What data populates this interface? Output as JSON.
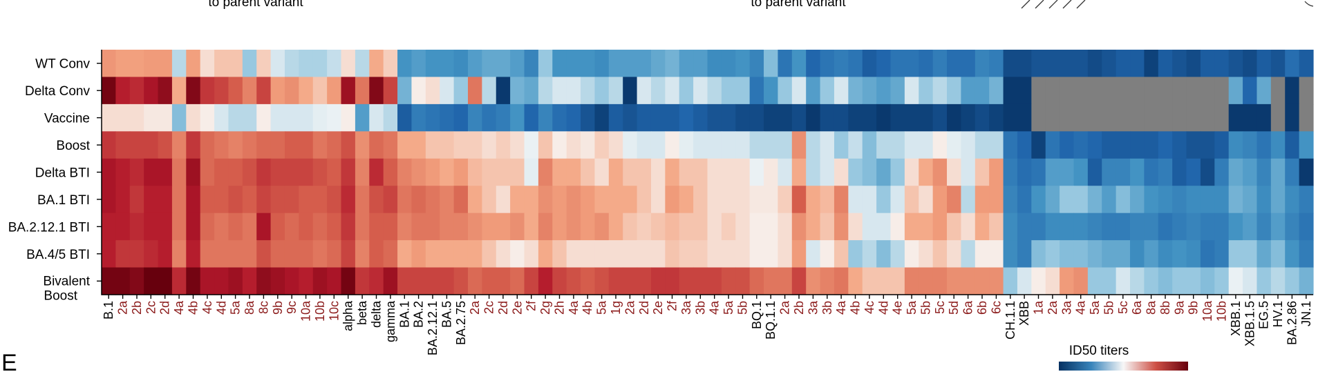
{
  "header": {
    "left_note": "to parent variant",
    "right_note": "to parent variant",
    "panel_letter": "E"
  },
  "colors": {
    "low": "#08306b",
    "mid": "#f7f7f7",
    "high": "#67000d",
    "missing": "#7f7f7f",
    "parent_label": "#8b1a1a",
    "axis": "#000000"
  },
  "legend": {
    "title": "ID50 titers",
    "colormap": "RdBu_r"
  },
  "chart_data": {
    "type": "heatmap",
    "title": "",
    "rows": [
      "WT Conv",
      "Delta Conv",
      "Vaccine",
      "Boost",
      "Delta BTI",
      "BA.1 BTI",
      "BA.2.12.1 BTI",
      "BA.4/5 BTI",
      "Bivalent Boost"
    ],
    "columns": [
      {
        "label": "B.1",
        "type": "parent"
      },
      {
        "label": "2a",
        "type": "sub"
      },
      {
        "label": "2b",
        "type": "sub"
      },
      {
        "label": "2c",
        "type": "sub"
      },
      {
        "label": "2d",
        "type": "sub"
      },
      {
        "label": "4a",
        "type": "sub"
      },
      {
        "label": "4b",
        "type": "sub"
      },
      {
        "label": "4c",
        "type": "sub"
      },
      {
        "label": "4d",
        "type": "sub"
      },
      {
        "label": "5a",
        "type": "sub"
      },
      {
        "label": "8a",
        "type": "sub"
      },
      {
        "label": "8c",
        "type": "sub"
      },
      {
        "label": "9b",
        "type": "sub"
      },
      {
        "label": "9c",
        "type": "sub"
      },
      {
        "label": "10a",
        "type": "sub"
      },
      {
        "label": "10b",
        "type": "sub"
      },
      {
        "label": "10c",
        "type": "sub"
      },
      {
        "label": "alpha",
        "type": "parent"
      },
      {
        "label": "beta",
        "type": "parent"
      },
      {
        "label": "delta",
        "type": "parent"
      },
      {
        "label": "gamma",
        "type": "parent"
      },
      {
        "label": "BA.1",
        "type": "parent"
      },
      {
        "label": "BA.2",
        "type": "parent"
      },
      {
        "label": "BA.2.12.1",
        "type": "parent"
      },
      {
        "label": "BA.5",
        "type": "parent"
      },
      {
        "label": "BA.2.75",
        "type": "parent"
      },
      {
        "label": "2a",
        "type": "sub"
      },
      {
        "label": "2c",
        "type": "sub"
      },
      {
        "label": "2d",
        "type": "sub"
      },
      {
        "label": "2e",
        "type": "sub"
      },
      {
        "label": "2f",
        "type": "sub"
      },
      {
        "label": "2g",
        "type": "sub"
      },
      {
        "label": "2h",
        "type": "sub"
      },
      {
        "label": "4a",
        "type": "sub"
      },
      {
        "label": "4b",
        "type": "sub"
      },
      {
        "label": "5a",
        "type": "sub"
      },
      {
        "label": "1g",
        "type": "sub"
      },
      {
        "label": "2a",
        "type": "sub"
      },
      {
        "label": "2d",
        "type": "sub"
      },
      {
        "label": "2e",
        "type": "sub"
      },
      {
        "label": "2f",
        "type": "sub"
      },
      {
        "label": "3a",
        "type": "sub"
      },
      {
        "label": "3b",
        "type": "sub"
      },
      {
        "label": "4a",
        "type": "sub"
      },
      {
        "label": "5a",
        "type": "sub"
      },
      {
        "label": "5b",
        "type": "sub"
      },
      {
        "label": "BQ.1",
        "type": "parent"
      },
      {
        "label": "BQ.1.1",
        "type": "parent"
      },
      {
        "label": "2a",
        "type": "sub"
      },
      {
        "label": "2b",
        "type": "sub"
      },
      {
        "label": "3a",
        "type": "sub"
      },
      {
        "label": "3b",
        "type": "sub"
      },
      {
        "label": "4a",
        "type": "sub"
      },
      {
        "label": "4b",
        "type": "sub"
      },
      {
        "label": "4c",
        "type": "sub"
      },
      {
        "label": "4d",
        "type": "sub"
      },
      {
        "label": "4e",
        "type": "sub"
      },
      {
        "label": "5a",
        "type": "sub"
      },
      {
        "label": "5b",
        "type": "sub"
      },
      {
        "label": "5c",
        "type": "sub"
      },
      {
        "label": "5d",
        "type": "sub"
      },
      {
        "label": "6a",
        "type": "sub"
      },
      {
        "label": "6b",
        "type": "sub"
      },
      {
        "label": "6c",
        "type": "sub"
      },
      {
        "label": "CH.1.1",
        "type": "parent"
      },
      {
        "label": "XBB",
        "type": "parent"
      },
      {
        "label": "1a",
        "type": "sub"
      },
      {
        "label": "2a",
        "type": "sub"
      },
      {
        "label": "3a",
        "type": "sub"
      },
      {
        "label": "4a",
        "type": "sub"
      },
      {
        "label": "5a",
        "type": "sub"
      },
      {
        "label": "5b",
        "type": "sub"
      },
      {
        "label": "5c",
        "type": "sub"
      },
      {
        "label": "6a",
        "type": "sub"
      },
      {
        "label": "8a",
        "type": "sub"
      },
      {
        "label": "8b",
        "type": "sub"
      },
      {
        "label": "9a",
        "type": "sub"
      },
      {
        "label": "9b",
        "type": "sub"
      },
      {
        "label": "10a",
        "type": "sub"
      },
      {
        "label": "10b",
        "type": "sub"
      },
      {
        "label": "XBB.1",
        "type": "parent"
      },
      {
        "label": "XBB.1.5",
        "type": "parent"
      },
      {
        "label": "EG.5",
        "type": "parent"
      },
      {
        "label": "HV.1",
        "type": "parent"
      },
      {
        "label": "BA.2.86",
        "type": "parent"
      },
      {
        "label": "JN.1",
        "type": "parent"
      }
    ],
    "value_range": [
      -1,
      1
    ],
    "values": [
      [
        0.22,
        0.18,
        0.18,
        0.2,
        0.2,
        -0.1,
        0.18,
        0.05,
        0.1,
        0.1,
        -0.15,
        0.08,
        -0.05,
        -0.1,
        -0.12,
        -0.12,
        -0.08,
        0.05,
        -0.1,
        0.15,
        0.08,
        -0.4,
        -0.35,
        -0.4,
        -0.4,
        -0.45,
        -0.35,
        -0.3,
        -0.3,
        -0.35,
        -0.5,
        -0.15,
        -0.4,
        -0.4,
        -0.4,
        -0.45,
        -0.35,
        -0.35,
        -0.35,
        -0.3,
        -0.25,
        -0.35,
        -0.35,
        -0.45,
        -0.45,
        -0.4,
        -0.5,
        -0.2,
        -0.6,
        -0.4,
        -0.7,
        -0.6,
        -0.55,
        -0.6,
        -0.75,
        -0.7,
        -0.6,
        -0.6,
        -0.65,
        -0.55,
        -0.65,
        -0.65,
        -0.5,
        -0.55,
        -0.85,
        -0.85,
        -0.8,
        -0.8,
        -0.8,
        -0.8,
        -0.85,
        -0.8,
        -0.75,
        -0.75,
        -0.9,
        -0.75,
        -0.8,
        -0.85,
        -0.75,
        -0.75,
        -0.8,
        -0.85,
        -0.75,
        -0.8,
        -0.65,
        -0.75
      ],
      [
        0.95,
        0.7,
        0.65,
        0.75,
        0.85,
        0.15,
        0.9,
        0.6,
        0.55,
        0.45,
        0.3,
        0.55,
        0.2,
        0.25,
        0.15,
        0.1,
        0.2,
        0.8,
        0.35,
        0.9,
        0.55,
        -0.25,
        0.02,
        0.05,
        -0.05,
        -0.15,
        0.35,
        -0.1,
        -0.95,
        -0.25,
        -0.3,
        -0.1,
        -0.05,
        -0.05,
        -0.1,
        -0.15,
        -0.1,
        -0.95,
        -0.05,
        -0.1,
        -0.05,
        -0.15,
        -0.05,
        -0.1,
        -0.15,
        -0.15,
        -0.6,
        -0.4,
        -0.15,
        -0.05,
        -0.35,
        -0.15,
        -0.05,
        -0.25,
        -0.3,
        -0.35,
        -0.3,
        -0.05,
        -0.15,
        -0.1,
        -0.15,
        -0.35,
        -0.35,
        -0.25,
        -0.95,
        -0.95,
        null,
        null,
        null,
        null,
        null,
        null,
        null,
        null,
        null,
        null,
        null,
        null,
        null,
        null,
        -0.3,
        -0.7,
        -0.3,
        null,
        -0.95,
        null
      ],
      [
        0.05,
        0.05,
        0.05,
        0.03,
        0.03,
        -0.2,
        0.05,
        0.02,
        -0.05,
        -0.1,
        -0.1,
        0.02,
        -0.05,
        -0.05,
        -0.05,
        -0.03,
        -0.02,
        0.02,
        -0.35,
        -0.05,
        -0.1,
        -0.75,
        -0.55,
        -0.6,
        -0.65,
        -0.7,
        -0.5,
        -0.6,
        -0.55,
        -0.4,
        -0.7,
        -0.5,
        -0.65,
        -0.7,
        -0.8,
        -0.9,
        -0.75,
        -0.8,
        -0.75,
        -0.75,
        -0.75,
        -0.7,
        -0.75,
        -0.8,
        -0.8,
        -0.85,
        -0.85,
        -0.9,
        -0.9,
        -0.85,
        -0.95,
        -0.85,
        -0.85,
        -0.9,
        -0.9,
        -0.95,
        -0.9,
        -0.9,
        -0.9,
        -0.85,
        -0.95,
        -0.9,
        -0.85,
        -0.9,
        -0.95,
        -0.95,
        null,
        null,
        null,
        null,
        null,
        null,
        null,
        null,
        null,
        null,
        null,
        null,
        null,
        null,
        -0.95,
        -0.95,
        -0.95,
        null,
        -0.95,
        null
      ],
      [
        0.6,
        0.55,
        0.55,
        0.55,
        0.5,
        0.3,
        0.6,
        0.4,
        0.35,
        0.3,
        0.35,
        0.4,
        0.4,
        0.45,
        0.45,
        0.35,
        0.4,
        0.5,
        0.25,
        0.4,
        0.35,
        0.15,
        0.15,
        0.1,
        0.1,
        0.08,
        0.08,
        0.05,
        0.08,
        0.05,
        -0.02,
        0.1,
        0.02,
        0.05,
        0.03,
        0.08,
        0.05,
        -0.03,
        -0.05,
        -0.05,
        0.02,
        -0.03,
        -0.05,
        -0.05,
        -0.05,
        -0.05,
        -0.1,
        -0.1,
        -0.1,
        0.25,
        -0.1,
        -0.05,
        -0.15,
        -0.08,
        -0.2,
        -0.1,
        -0.1,
        -0.05,
        -0.05,
        0.02,
        -0.03,
        -0.05,
        -0.1,
        -0.1,
        -0.6,
        -0.7,
        -0.9,
        -0.6,
        -0.7,
        -0.65,
        -0.7,
        -0.75,
        -0.75,
        -0.75,
        -0.75,
        -0.7,
        -0.75,
        -0.8,
        -0.8,
        -0.75,
        -0.45,
        -0.5,
        -0.6,
        -0.45,
        -0.75,
        -0.4
      ],
      [
        0.75,
        0.7,
        0.65,
        0.75,
        0.75,
        0.35,
        0.8,
        0.4,
        0.45,
        0.45,
        0.5,
        0.6,
        0.55,
        0.55,
        0.55,
        0.5,
        0.45,
        0.6,
        0.3,
        0.65,
        0.45,
        0.3,
        0.25,
        0.2,
        0.15,
        0.2,
        0.12,
        0.1,
        0.1,
        0.1,
        -0.03,
        0.3,
        0.15,
        0.15,
        0.1,
        0.05,
        0.15,
        0.1,
        0.1,
        0.05,
        0.15,
        0.1,
        0.1,
        0.05,
        0.05,
        0.05,
        -0.02,
        0.03,
        -0.05,
        0.15,
        -0.1,
        -0.05,
        0.05,
        -0.15,
        -0.2,
        -0.3,
        -0.15,
        0.05,
        0.15,
        0.25,
        0.05,
        -0.05,
        0.1,
        0.2,
        -0.55,
        -0.65,
        -0.6,
        -0.35,
        -0.35,
        -0.4,
        -0.75,
        -0.5,
        -0.5,
        -0.4,
        -0.6,
        -0.55,
        -0.75,
        -0.7,
        -0.85,
        -0.55,
        -0.3,
        -0.35,
        -0.5,
        -0.3,
        -0.55,
        -0.95
      ],
      [
        0.75,
        0.7,
        0.6,
        0.7,
        0.7,
        0.35,
        0.75,
        0.45,
        0.45,
        0.5,
        0.45,
        0.55,
        0.5,
        0.5,
        0.45,
        0.45,
        0.5,
        0.65,
        0.35,
        0.5,
        0.55,
        0.35,
        0.4,
        0.35,
        0.3,
        0.4,
        0.15,
        0.1,
        0.05,
        0.15,
        0.15,
        0.25,
        0.2,
        0.25,
        0.2,
        0.15,
        0.15,
        0.15,
        0.1,
        0.05,
        0.2,
        0.15,
        0.1,
        0.05,
        0.05,
        0.05,
        0.03,
        0.03,
        0.08,
        0.45,
        0.15,
        0.12,
        0.3,
        -0.05,
        -0.05,
        -0.15,
        -0.05,
        0.1,
        0.05,
        0.2,
        0.3,
        -0.1,
        0.2,
        0.2,
        -0.5,
        -0.6,
        -0.4,
        -0.3,
        -0.15,
        -0.15,
        -0.25,
        -0.35,
        -0.2,
        -0.3,
        -0.4,
        -0.45,
        -0.5,
        -0.45,
        -0.45,
        -0.45,
        -0.25,
        -0.3,
        -0.45,
        -0.3,
        -0.45,
        -0.55
      ],
      [
        0.7,
        0.7,
        0.65,
        0.7,
        0.7,
        0.35,
        0.75,
        0.4,
        0.35,
        0.4,
        0.35,
        0.75,
        0.45,
        0.4,
        0.45,
        0.4,
        0.45,
        0.6,
        0.35,
        0.45,
        0.45,
        0.3,
        0.35,
        0.35,
        0.3,
        0.3,
        0.25,
        0.2,
        0.2,
        0.25,
        0.15,
        0.3,
        0.2,
        0.25,
        0.2,
        0.25,
        0.15,
        0.1,
        0.08,
        0.1,
        0.12,
        0.1,
        0.1,
        0.05,
        0.08,
        0.05,
        0.02,
        0.02,
        0.05,
        0.25,
        0.15,
        0.1,
        0.25,
        0.05,
        -0.05,
        -0.05,
        0.02,
        0.15,
        0.15,
        0.2,
        0.1,
        0.05,
        0.15,
        0.1,
        -0.45,
        -0.55,
        -0.55,
        -0.45,
        -0.45,
        -0.45,
        -0.5,
        -0.55,
        -0.55,
        -0.5,
        -0.5,
        -0.6,
        -0.55,
        -0.5,
        -0.55,
        -0.55,
        -0.4,
        -0.35,
        -0.5,
        -0.35,
        -0.5,
        -0.6
      ],
      [
        0.7,
        0.6,
        0.6,
        0.65,
        0.7,
        0.3,
        0.7,
        0.35,
        0.35,
        0.35,
        0.35,
        0.5,
        0.4,
        0.4,
        0.4,
        0.35,
        0.4,
        0.55,
        0.3,
        0.45,
        0.4,
        0.15,
        0.2,
        0.15,
        0.15,
        0.15,
        0.15,
        0.1,
        0.05,
        0.02,
        0.05,
        0.15,
        0.1,
        0.05,
        0.05,
        0.05,
        0.05,
        0.05,
        0.05,
        0.05,
        0.1,
        0.08,
        0.08,
        0.05,
        0.05,
        0.05,
        0.02,
        0.02,
        0.05,
        0.2,
        -0.05,
        0.02,
        0.1,
        -0.15,
        -0.1,
        -0.2,
        -0.1,
        0.02,
        0.05,
        0.1,
        0.05,
        -0.1,
        0.02,
        0.02,
        -0.45,
        -0.55,
        -0.2,
        -0.15,
        -0.2,
        -0.2,
        -0.25,
        -0.3,
        -0.3,
        -0.45,
        -0.35,
        -0.45,
        -0.4,
        -0.45,
        -0.6,
        -0.55,
        -0.15,
        -0.15,
        -0.3,
        -0.2,
        -0.4,
        -0.55
      ],
      [
        0.95,
        0.95,
        0.9,
        1.0,
        1.0,
        0.65,
        0.95,
        0.75,
        0.75,
        0.8,
        0.7,
        0.85,
        0.8,
        0.75,
        0.7,
        0.8,
        0.75,
        0.95,
        0.6,
        0.65,
        0.8,
        0.55,
        0.55,
        0.55,
        0.55,
        0.5,
        0.4,
        0.45,
        0.45,
        0.4,
        0.55,
        0.7,
        0.55,
        0.5,
        0.45,
        0.5,
        0.55,
        0.55,
        0.55,
        0.6,
        0.6,
        0.55,
        0.55,
        0.55,
        0.5,
        0.5,
        0.4,
        0.35,
        0.35,
        0.55,
        0.25,
        0.3,
        0.35,
        0.15,
        0.1,
        0.1,
        0.1,
        0.3,
        0.3,
        0.3,
        0.25,
        0.25,
        0.25,
        0.25,
        -0.15,
        -0.05,
        0.02,
        0.05,
        0.2,
        0.25,
        -0.15,
        -0.15,
        -0.05,
        -0.1,
        -0.15,
        -0.2,
        -0.15,
        -0.15,
        -0.2,
        -0.15,
        -0.02,
        -0.05,
        -0.15,
        -0.1,
        -0.15,
        -0.25
      ]
    ]
  }
}
